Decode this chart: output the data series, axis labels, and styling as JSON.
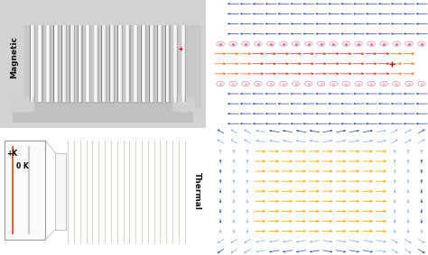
{
  "fig_width": 4.74,
  "fig_height": 2.83,
  "dpi": 100,
  "background": "#ffffff",
  "top_left": {
    "label": "Magnetic",
    "bg_color": "#d8d8d8",
    "n_coils": 20,
    "coil_light": "#f0f0f0",
    "coil_dark": "#999999",
    "core_color": "#c0c0c0",
    "core_curve_color": "#b0b0b0"
  },
  "top_right": {
    "bg_color": "#ffffff",
    "colors": {
      "blue_outer": "#3355cc",
      "cyan_mid": "#00aacc",
      "green": "#44bb66",
      "yellow": "#ddcc00",
      "orange": "#ff8800",
      "red_hot": "#ee3300",
      "pink_ring": "#ffaaaa"
    }
  },
  "bottom_left": {
    "label": "Thermal",
    "bg_color": "#ffffff",
    "box_facecolor": "#fafaf8",
    "box_edgecolor": "#999999",
    "line_color": "#d8d3c0",
    "zoom_line_color": "#dddddd",
    "label_pk": "+K",
    "label_0k": "0 K",
    "n_lines": 20
  },
  "bottom_right": {
    "bg_color": "#ffffff",
    "arrow_inner": "#ffaa00",
    "arrow_outer_dark": "#2244aa",
    "arrow_outer_light": "#88aadd"
  }
}
